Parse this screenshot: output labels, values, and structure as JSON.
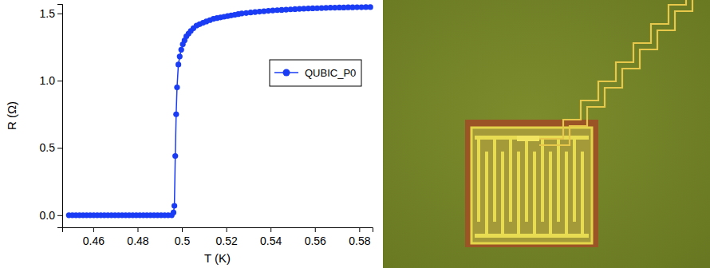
{
  "chart_data": {
    "type": "line",
    "x_label": "T (K)",
    "y_label": "R (Ω)",
    "x": [
      0.449,
      0.4506,
      0.4522,
      0.4538,
      0.4554,
      0.457,
      0.4586,
      0.4602,
      0.4618,
      0.4634,
      0.465,
      0.4666,
      0.4682,
      0.4698,
      0.4714,
      0.473,
      0.4746,
      0.4762,
      0.4778,
      0.4794,
      0.481,
      0.4826,
      0.4842,
      0.4858,
      0.4874,
      0.489,
      0.4906,
      0.4922,
      0.4938,
      0.4954,
      0.4962,
      0.4966,
      0.497,
      0.4974,
      0.4978,
      0.4984,
      0.499,
      0.4997,
      0.5004,
      0.5012,
      0.502,
      0.503,
      0.504,
      0.5052,
      0.5066,
      0.508,
      0.5095,
      0.511,
      0.5126,
      0.5142,
      0.5158,
      0.5174,
      0.519,
      0.5206,
      0.5222,
      0.5238,
      0.5254,
      0.527,
      0.529,
      0.531,
      0.533,
      0.535,
      0.537,
      0.539,
      0.541,
      0.543,
      0.545,
      0.547,
      0.549,
      0.551,
      0.553,
      0.555,
      0.557,
      0.559,
      0.561,
      0.563,
      0.565,
      0.567,
      0.569,
      0.571,
      0.573,
      0.575,
      0.577,
      0.579,
      0.581,
      0.583,
      0.585
    ],
    "series": [
      {
        "name": "QUBIC_P0",
        "color": "#1a3cf5",
        "marker": "circle",
        "line_style": "solid",
        "values": [
          0,
          0,
          0,
          0,
          0,
          0,
          0,
          0,
          0,
          0,
          0,
          0,
          0,
          0,
          0,
          0,
          0,
          0,
          0,
          0,
          0,
          0,
          0,
          0,
          0,
          0,
          0,
          0,
          0,
          0,
          0.02,
          0.07,
          0.44,
          0.75,
          0.95,
          1.12,
          1.18,
          1.23,
          1.27,
          1.3,
          1.33,
          1.35,
          1.37,
          1.39,
          1.41,
          1.42,
          1.43,
          1.44,
          1.45,
          1.46,
          1.465,
          1.47,
          1.475,
          1.48,
          1.485,
          1.49,
          1.495,
          1.5,
          1.503,
          1.507,
          1.51,
          1.513,
          1.516,
          1.519,
          1.522,
          1.524,
          1.526,
          1.528,
          1.53,
          1.532,
          1.534,
          1.535,
          1.537,
          1.538,
          1.539,
          1.54,
          1.541,
          1.542,
          1.543,
          1.544,
          1.544,
          1.545,
          1.545,
          1.546,
          1.546,
          1.547,
          1.547
        ]
      }
    ],
    "xlim": [
      0.446,
      0.586
    ],
    "ylim": [
      -0.09,
      1.57
    ],
    "xticks": [
      0.46,
      0.48,
      0.5,
      0.52,
      0.54,
      0.56,
      0.58
    ],
    "yticks": [
      {
        "value": 0,
        "label": "0.0"
      },
      {
        "value": 0.5,
        "label": "0.5"
      },
      {
        "value": 1,
        "label": "1.0"
      },
      {
        "value": 1.5,
        "label": "1.5"
      }
    ],
    "grid": false,
    "legend": "right"
  }
}
